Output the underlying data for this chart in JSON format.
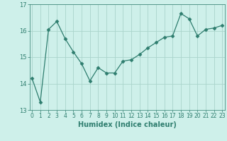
{
  "x": [
    0,
    1,
    2,
    3,
    4,
    5,
    6,
    7,
    8,
    9,
    10,
    11,
    12,
    13,
    14,
    15,
    16,
    17,
    18,
    19,
    20,
    21,
    22,
    23
  ],
  "y": [
    14.2,
    13.3,
    16.05,
    16.35,
    15.7,
    15.2,
    14.75,
    14.1,
    14.6,
    14.4,
    14.4,
    14.85,
    14.9,
    15.1,
    15.35,
    15.55,
    15.75,
    15.8,
    16.65,
    16.45,
    15.8,
    16.05,
    16.1,
    16.2
  ],
  "line_color": "#2e7d6e",
  "marker": "D",
  "marker_size": 2.5,
  "bg_color": "#cef0ea",
  "grid_color": "#aad4cc",
  "xlabel": "Humidex (Indice chaleur)",
  "ylim": [
    13,
    17
  ],
  "xlim": [
    -0.3,
    23.3
  ],
  "yticks": [
    13,
    14,
    15,
    16,
    17
  ],
  "xticks": [
    0,
    1,
    2,
    3,
    4,
    5,
    6,
    7,
    8,
    9,
    10,
    11,
    12,
    13,
    14,
    15,
    16,
    17,
    18,
    19,
    20,
    21,
    22,
    23
  ],
  "xtick_labels": [
    "0",
    "1",
    "2",
    "3",
    "4",
    "5",
    "6",
    "7",
    "8",
    "9",
    "10",
    "11",
    "12",
    "13",
    "14",
    "15",
    "16",
    "17",
    "18",
    "19",
    "20",
    "21",
    "22",
    "23"
  ],
  "xlabel_fontsize": 7,
  "ytick_fontsize": 6,
  "xtick_fontsize": 5.5
}
